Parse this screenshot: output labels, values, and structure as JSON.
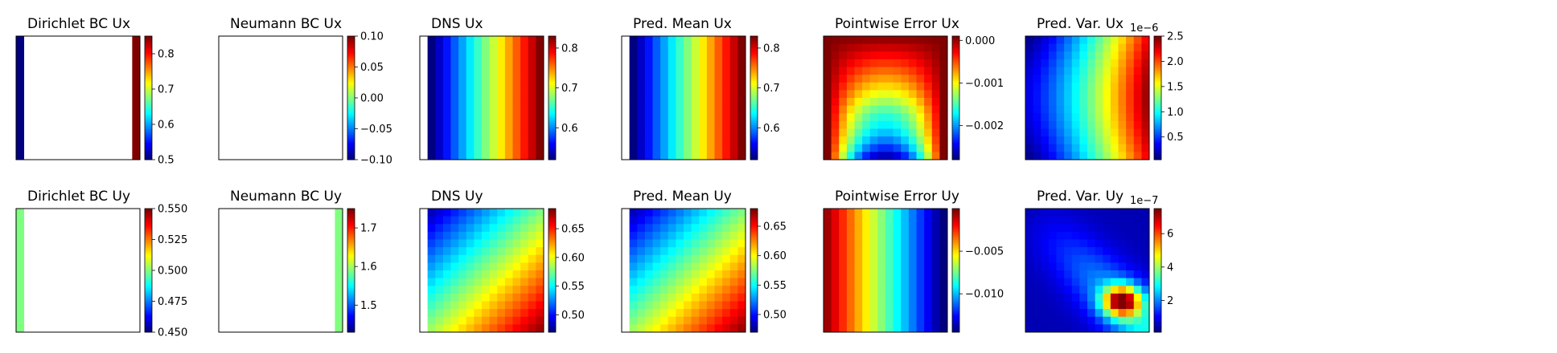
{
  "chart_data": [
    {
      "type": "heatmap",
      "title": "Dirichlet BC Ux",
      "field": "dirichlet_ux",
      "colorbar": {
        "range": [
          0.5,
          0.85
        ],
        "ticks": [
          0.5,
          0.6,
          0.7,
          0.8
        ],
        "tick_labels": [
          "0.5",
          "0.6",
          "0.7",
          "0.8"
        ],
        "exponent": ""
      },
      "data": {
        "left_edge": 0.5,
        "right_edge": 0.85,
        "interior": "blank"
      }
    },
    {
      "type": "heatmap",
      "title": "Neumann BC Ux",
      "field": "blank",
      "colorbar": {
        "range": [
          -0.1,
          0.1
        ],
        "ticks": [
          -0.1,
          -0.05,
          0.0,
          0.05,
          0.1
        ],
        "tick_labels": [
          "−0.10",
          "−0.05",
          "0.00",
          "0.05",
          "0.10"
        ],
        "exponent": ""
      },
      "data": {
        "interior": "blank"
      }
    },
    {
      "type": "heatmap",
      "title": "DNS Ux",
      "field": "dns_ux",
      "colorbar": {
        "range": [
          0.52,
          0.83
        ],
        "ticks": [
          0.6,
          0.7,
          0.8
        ],
        "tick_labels": [
          "0.6",
          "0.7",
          "0.8"
        ],
        "exponent": ""
      },
      "data": {
        "min": 0.52,
        "max": 0.83,
        "pattern": "increases left to right, constant in y; blank first column"
      }
    },
    {
      "type": "heatmap",
      "title": "Pred. Mean Ux",
      "field": "pred_mean_ux",
      "colorbar": {
        "range": [
          0.52,
          0.83
        ],
        "ticks": [
          0.6,
          0.7,
          0.8
        ],
        "tick_labels": [
          "0.6",
          "0.7",
          "0.8"
        ],
        "exponent": ""
      },
      "data": {
        "min": 0.52,
        "max": 0.83,
        "pattern": "increases left to right, constant in y; blank first column"
      }
    },
    {
      "type": "heatmap",
      "title": "Pointwise Error Ux",
      "field": "error_ux",
      "colorbar": {
        "range": [
          -0.0028,
          0.0001
        ],
        "ticks": [
          0.0,
          -0.001,
          -0.002
        ],
        "tick_labels": [
          "0.000",
          "−0.001",
          "−0.002"
        ],
        "exponent": ""
      },
      "data": {
        "min": -0.0028,
        "max": 0.0001,
        "pattern": "near zero at top and side edges, negative arch in the centre, minimum at bottom centre"
      }
    },
    {
      "type": "heatmap",
      "title": "Pred. Var. Ux",
      "field": "var_ux",
      "colorbar": {
        "range": [
          0.05,
          2.5
        ],
        "ticks": [
          0.5,
          1.0,
          1.5,
          2.0,
          2.5
        ],
        "tick_labels": [
          "0.5",
          "1.0",
          "1.5",
          "2.0",
          "2.5"
        ],
        "exponent": "1e−6"
      },
      "data": {
        "min": 0.05,
        "max": 2.5,
        "pattern": "low on the left, rising to the right, maximum near right edge"
      }
    },
    {
      "type": "heatmap",
      "title": "Dirichlet BC Uy",
      "field": "dirichlet_uy",
      "colorbar": {
        "range": [
          0.45,
          0.55
        ],
        "ticks": [
          0.45,
          0.475,
          0.5,
          0.525,
          0.55
        ],
        "tick_labels": [
          "0.450",
          "0.475",
          "0.500",
          "0.525",
          "0.550"
        ],
        "exponent": ""
      },
      "data": {
        "left_edge": 0.5,
        "interior": "blank"
      }
    },
    {
      "type": "heatmap",
      "title": "Neumann BC Uy",
      "field": "neumann_uy",
      "colorbar": {
        "range": [
          1.43,
          1.75
        ],
        "ticks": [
          1.5,
          1.6,
          1.7
        ],
        "tick_labels": [
          "1.5",
          "1.6",
          "1.7"
        ],
        "exponent": ""
      },
      "data": {
        "right_edge": 1.59,
        "interior": "blank"
      }
    },
    {
      "type": "heatmap",
      "title": "DNS Uy",
      "field": "dns_uy",
      "colorbar": {
        "range": [
          0.47,
          0.685
        ],
        "ticks": [
          0.5,
          0.55,
          0.6,
          0.65
        ],
        "tick_labels": [
          "0.50",
          "0.55",
          "0.60",
          "0.65"
        ],
        "exponent": ""
      },
      "data": {
        "min": 0.47,
        "max": 0.685,
        "pattern": "diagonal gradient, low at top-left, high at bottom-right"
      }
    },
    {
      "type": "heatmap",
      "title": "Pred. Mean Uy",
      "field": "pred_mean_uy",
      "colorbar": {
        "range": [
          0.47,
          0.68
        ],
        "ticks": [
          0.5,
          0.55,
          0.6,
          0.65
        ],
        "tick_labels": [
          "0.50",
          "0.55",
          "0.60",
          "0.65"
        ],
        "exponent": ""
      },
      "data": {
        "min": 0.47,
        "max": 0.68,
        "pattern": "diagonal gradient, low at top-left, high at bottom-right"
      }
    },
    {
      "type": "heatmap",
      "title": "Pointwise Error Uy",
      "field": "error_uy",
      "colorbar": {
        "range": [
          -0.0145,
          0.0
        ],
        "ticks": [
          -0.005,
          -0.01
        ],
        "tick_labels": [
          "−0.005",
          "−0.010"
        ],
        "exponent": ""
      },
      "data": {
        "min": -0.0145,
        "max": 0.0,
        "pattern": "near zero on the left, decreasing to the right"
      }
    },
    {
      "type": "heatmap",
      "title": "Pred. Var. Uy",
      "field": "var_uy",
      "colorbar": {
        "range": [
          0.1,
          7.5
        ],
        "ticks": [
          2,
          4,
          6
        ],
        "tick_labels": [
          "2",
          "4",
          "6"
        ],
        "exponent": "1e−7"
      },
      "data": {
        "min": 0.1,
        "max": 7.5,
        "pattern": "low at top-left, diagonal band, maximum near lower right"
      }
    }
  ]
}
